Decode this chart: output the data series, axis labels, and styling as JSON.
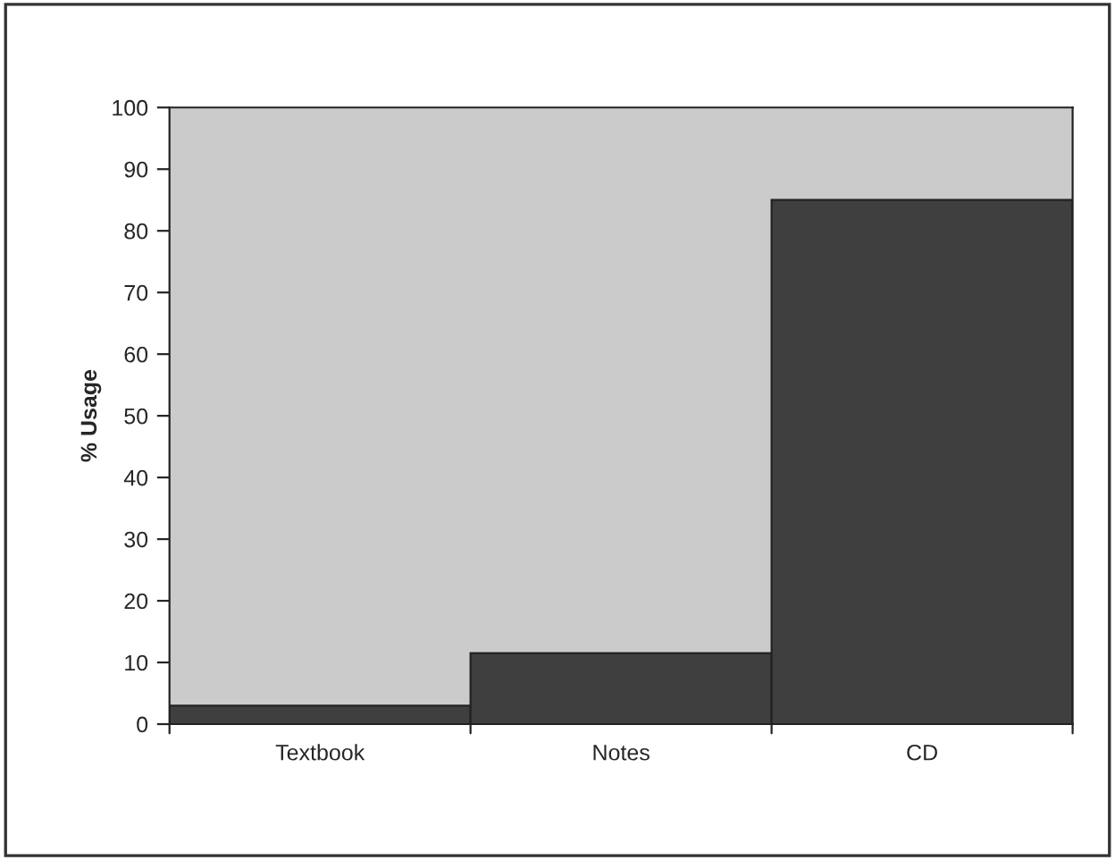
{
  "chart_data": {
    "type": "bar",
    "ylabel": "% Usage",
    "categories": [
      "Textbook",
      "Notes",
      "CD"
    ],
    "values": [
      3,
      11.5,
      85
    ],
    "color": "#3f3f3f",
    "ylim": [
      0,
      100
    ],
    "yticks": [
      0,
      10,
      20,
      30,
      40,
      50,
      60,
      70,
      80,
      90,
      100
    ]
  }
}
